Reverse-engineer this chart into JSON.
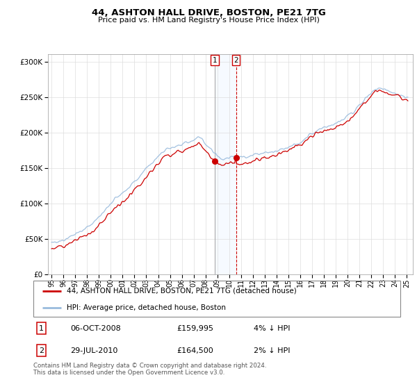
{
  "title": "44, ASHTON HALL DRIVE, BOSTON, PE21 7TG",
  "subtitle": "Price paid vs. HM Land Registry's House Price Index (HPI)",
  "hpi_label": "HPI: Average price, detached house, Boston",
  "property_label": "44, ASHTON HALL DRIVE, BOSTON, PE21 7TG (detached house)",
  "footnote": "Contains HM Land Registry data © Crown copyright and database right 2024.\nThis data is licensed under the Open Government Licence v3.0.",
  "marker1_date": "06-OCT-2008",
  "marker1_price": "£159,995",
  "marker1_note": "4% ↓ HPI",
  "marker1_label": "1",
  "marker1_x": 2008.77,
  "marker1_y": 159995,
  "marker2_date": "29-JUL-2010",
  "marker2_price": "£164,500",
  "marker2_note": "2% ↓ HPI",
  "marker2_label": "2",
  "marker2_x": 2010.57,
  "marker2_y": 164500,
  "property_color": "#cc0000",
  "hpi_color": "#99bbdd",
  "marker_color": "#cc0000",
  "vline1_color": "#aaaaaa",
  "vline2_color": "#cc0000",
  "shade_color": "#ddeeff",
  "ylim": [
    0,
    310000
  ],
  "yticks": [
    0,
    50000,
    100000,
    150000,
    200000,
    250000,
    300000
  ],
  "xlim_left": 1994.7,
  "xlim_right": 2025.5
}
